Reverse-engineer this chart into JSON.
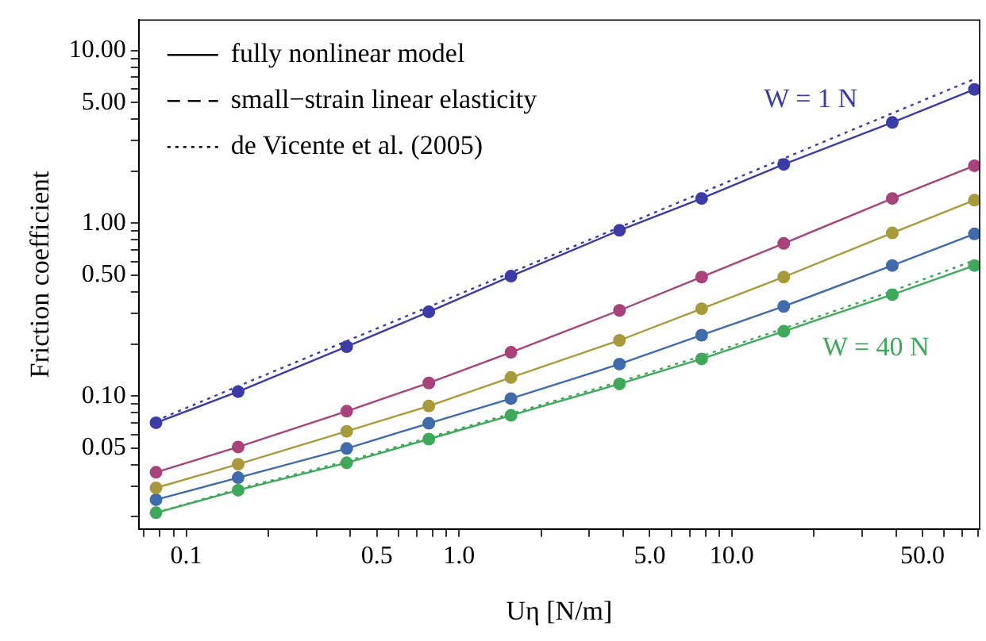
{
  "chart_data": {
    "type": "line",
    "xlabel": "Uη [N/m]",
    "ylabel": "Friction coefficient",
    "log": "xy",
    "grid": false,
    "legend": "top left",
    "marker": "circle",
    "x": [
      0.0775,
      0.155,
      0.3875,
      0.775,
      1.55,
      3.875,
      7.75,
      15.5,
      38.75,
      77.5
    ],
    "xlim": [
      0.067,
      81
    ],
    "xticks": [
      {
        "value": 0.07,
        "label": null
      },
      {
        "value": 0.08,
        "label": null
      },
      {
        "value": 0.09,
        "label": null
      },
      0.1,
      {
        "value": 0.2,
        "label": null
      },
      {
        "value": 0.3,
        "label": null
      },
      {
        "value": 0.4,
        "label": null
      },
      0.5,
      {
        "value": 0.6,
        "label": null
      },
      {
        "value": 0.7,
        "label": null
      },
      {
        "value": 0.8,
        "label": null
      },
      {
        "value": 0.9,
        "label": null
      },
      {
        "value": 1,
        "label": "1.0"
      },
      {
        "value": 2,
        "label": null
      },
      {
        "value": 3,
        "label": null
      },
      {
        "value": 4,
        "label": null
      },
      {
        "value": 5,
        "label": "5.0"
      },
      {
        "value": 6,
        "label": null
      },
      {
        "value": 7,
        "label": null
      },
      {
        "value": 8,
        "label": null
      },
      {
        "value": 9,
        "label": null
      },
      {
        "value": 10,
        "label": "10.0"
      },
      {
        "value": 20,
        "label": null
      },
      {
        "value": 30,
        "label": null
      },
      {
        "value": 40,
        "label": null
      },
      {
        "value": 50,
        "label": "50.0"
      },
      {
        "value": 60,
        "label": null
      },
      {
        "value": 70,
        "label": null
      },
      {
        "value": 80,
        "label": null
      }
    ],
    "ylim": [
      0.017,
      15
    ],
    "yticks": [
      {
        "value": 0.02,
        "label": null
      },
      {
        "value": 0.03,
        "label": null
      },
      {
        "value": 0.04,
        "label": null
      },
      0.05,
      {
        "value": 0.06,
        "label": null
      },
      {
        "value": 0.07,
        "label": null
      },
      {
        "value": 0.08,
        "label": null
      },
      {
        "value": 0.09,
        "label": null
      },
      {
        "value": 0.1,
        "label": "0.10"
      },
      {
        "value": 0.2,
        "label": null
      },
      {
        "value": 0.3,
        "label": null
      },
      {
        "value": 0.4,
        "label": null
      },
      {
        "value": 0.5,
        "label": "0.50"
      },
      {
        "value": 0.6,
        "label": null
      },
      {
        "value": 0.7,
        "label": null
      },
      {
        "value": 0.8,
        "label": null
      },
      {
        "value": 0.9,
        "label": null
      },
      {
        "value": 1,
        "label": "1.00"
      },
      {
        "value": 2,
        "label": null
      },
      {
        "value": 3,
        "label": null
      },
      {
        "value": 4,
        "label": null
      },
      {
        "value": 5,
        "label": "5.00"
      },
      {
        "value": 6,
        "label": null
      },
      {
        "value": 7,
        "label": null
      },
      {
        "value": 8,
        "label": null
      },
      {
        "value": 9,
        "label": null
      },
      {
        "value": 10,
        "label": "10.00"
      }
    ],
    "series": [
      {
        "name": "W = 1 N",
        "color": "#3b3ba8",
        "line_style": "solid",
        "values": [
          0.07,
          0.106,
          0.193,
          0.307,
          0.494,
          0.91,
          1.39,
          2.19,
          3.83,
          5.95
        ]
      },
      {
        "color": "#a8427a",
        "line_style": "solid",
        "values": [
          0.0362,
          0.0507,
          0.0817,
          0.119,
          0.179,
          0.313,
          0.488,
          0.764,
          1.39,
          2.15
        ]
      },
      {
        "color": "#a89a3a",
        "line_style": "solid",
        "values": [
          0.0294,
          0.0403,
          0.0625,
          0.0875,
          0.128,
          0.21,
          0.32,
          0.488,
          0.879,
          1.36
        ]
      },
      {
        "color": "#3f6aab",
        "line_style": "solid",
        "values": [
          0.0251,
          0.0337,
          0.0497,
          0.0695,
          0.0966,
          0.153,
          0.225,
          0.33,
          0.569,
          0.867
        ]
      },
      {
        "name": "W = 40 N",
        "color": "#3fa85a",
        "line_style": "solid",
        "values": [
          0.0211,
          0.0285,
          0.0411,
          0.0563,
          0.0773,
          0.1175,
          0.164,
          0.237,
          0.386,
          0.569
        ]
      },
      {
        "color": "#3b3ba8",
        "line_style": "dotted",
        "marker": "none",
        "values": [
          0.072,
          0.114,
          0.208,
          0.328,
          0.518,
          0.948,
          1.5,
          2.37,
          4.33,
          6.83
        ]
      },
      {
        "color": "#3fa85a",
        "line_style": "dotted",
        "marker": "none",
        "values": [
          0.0211,
          0.029,
          0.042,
          0.0575,
          0.079,
          0.121,
          0.17,
          0.246,
          0.405,
          0.61
        ]
      },
      {
        "name": "fully nonlinear model",
        "color": "#000000",
        "line_style": "solid",
        "marker": "none",
        "values": [
          null,
          null,
          null,
          null,
          null,
          null,
          null,
          null,
          null,
          null
        ]
      },
      {
        "name": "small−strain linear elasticity",
        "color": "#000000",
        "line_style": "dashed",
        "marker": "none",
        "values": [
          null,
          null,
          null,
          null,
          null,
          null,
          null,
          null,
          null,
          null
        ]
      },
      {
        "name": "de Vicente et al. (2005)",
        "color": "#000000",
        "line_style": "dotted",
        "marker": "none",
        "values": [
          null,
          null,
          null,
          null,
          null,
          null,
          null,
          null,
          null,
          null
        ]
      }
    ]
  }
}
